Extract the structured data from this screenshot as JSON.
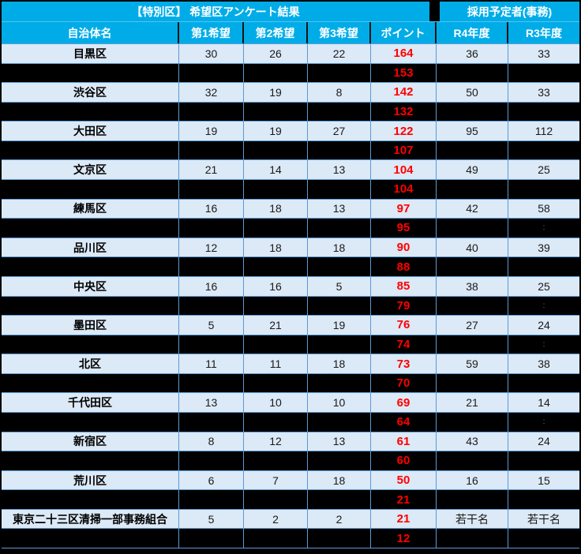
{
  "title": {
    "left": "【特別区】 希望区アンケート結果",
    "right": "採用予定者(事務)"
  },
  "header": {
    "cols": [
      "自治体名",
      "第1希望",
      "第2希望",
      "第3希望",
      "ポイント",
      "R4年度",
      "R3年度"
    ]
  },
  "rows": [
    {
      "type": "data",
      "name": "目黒区",
      "c1": "30",
      "c2": "26",
      "c3": "22",
      "point": "164",
      "r4": "36",
      "r3": "33"
    },
    {
      "type": "hidden",
      "point": "153"
    },
    {
      "type": "data",
      "name": "渋谷区",
      "c1": "32",
      "c2": "19",
      "c3": "8",
      "point": "142",
      "r4": "50",
      "r3": "33"
    },
    {
      "type": "hidden",
      "point": "132"
    },
    {
      "type": "data",
      "name": "大田区",
      "c1": "19",
      "c2": "19",
      "c3": "27",
      "point": "122",
      "r4": "95",
      "r3": "112"
    },
    {
      "type": "hidden",
      "point": "107"
    },
    {
      "type": "data",
      "name": "文京区",
      "c1": "21",
      "c2": "14",
      "c3": "13",
      "point": "104",
      "r4": "49",
      "r3": "25"
    },
    {
      "type": "hidden",
      "point": "104"
    },
    {
      "type": "data",
      "name": "練馬区",
      "c1": "16",
      "c2": "18",
      "c3": "13",
      "point": "97",
      "r4": "42",
      "r3": "58"
    },
    {
      "type": "hidden",
      "point": "95",
      "faint_mark": ":"
    },
    {
      "type": "data",
      "name": "品川区",
      "c1": "12",
      "c2": "18",
      "c3": "18",
      "point": "90",
      "r4": "40",
      "r3": "39"
    },
    {
      "type": "hidden",
      "point": "88"
    },
    {
      "type": "data",
      "name": "中央区",
      "c1": "16",
      "c2": "16",
      "c3": "5",
      "point": "85",
      "r4": "38",
      "r3": "25"
    },
    {
      "type": "hidden",
      "point": "79",
      "faint_mark": ":"
    },
    {
      "type": "data",
      "name": "墨田区",
      "c1": "5",
      "c2": "21",
      "c3": "19",
      "point": "76",
      "r4": "27",
      "r3": "24"
    },
    {
      "type": "hidden",
      "point": "74",
      "faint_mark": ":"
    },
    {
      "type": "data",
      "name": "北区",
      "c1": "11",
      "c2": "11",
      "c3": "18",
      "point": "73",
      "r4": "59",
      "r3": "38"
    },
    {
      "type": "hidden",
      "point": "70"
    },
    {
      "type": "data",
      "name": "千代田区",
      "c1": "13",
      "c2": "10",
      "c3": "10",
      "point": "69",
      "r4": "21",
      "r3": "14"
    },
    {
      "type": "hidden",
      "point": "64",
      "faint_mark": ":"
    },
    {
      "type": "data",
      "name": "新宿区",
      "c1": "8",
      "c2": "12",
      "c3": "13",
      "point": "61",
      "r4": "43",
      "r3": "24"
    },
    {
      "type": "hidden",
      "point": "60"
    },
    {
      "type": "data",
      "name": "荒川区",
      "c1": "6",
      "c2": "7",
      "c3": "18",
      "point": "50",
      "r4": "16",
      "r3": "15"
    },
    {
      "type": "hidden",
      "point": "21"
    },
    {
      "type": "data",
      "name": "東京二十三区清掃一部事務組合",
      "c1": "5",
      "c2": "2",
      "c3": "2",
      "point": "21",
      "r4": "若干名",
      "r3": "若干名"
    },
    {
      "type": "hidden",
      "point": "12"
    }
  ],
  "colors": {
    "header_blue": "#00ACE8",
    "grid_blue": "#5B9BD5",
    "row_light_blue": "#DCE9F6",
    "hidden_row_black": "#000000",
    "point_red": "#FF0000"
  },
  "chart_data": {
    "type": "table",
    "title": "【特別区】 希望区アンケート結果 / 採用予定者(事務)",
    "columns": [
      "自治体名",
      "第1希望",
      "第2希望",
      "第3希望",
      "ポイント",
      "R4年度",
      "R3年度"
    ],
    "rows": [
      [
        "目黒区",
        30,
        26,
        22,
        164,
        "36",
        "33"
      ],
      [
        "(非表示)",
        null,
        null,
        null,
        153,
        null,
        null
      ],
      [
        "渋谷区",
        32,
        19,
        8,
        142,
        "50",
        "33"
      ],
      [
        "(非表示)",
        null,
        null,
        null,
        132,
        null,
        null
      ],
      [
        "大田区",
        19,
        19,
        27,
        122,
        "95",
        "112"
      ],
      [
        "(非表示)",
        null,
        null,
        null,
        107,
        null,
        null
      ],
      [
        "文京区",
        21,
        14,
        13,
        104,
        "49",
        "25"
      ],
      [
        "(非表示)",
        null,
        null,
        null,
        104,
        null,
        null
      ],
      [
        "練馬区",
        16,
        18,
        13,
        97,
        "42",
        "58"
      ],
      [
        "(非表示)",
        null,
        null,
        null,
        95,
        null,
        null
      ],
      [
        "品川区",
        12,
        18,
        18,
        90,
        "40",
        "39"
      ],
      [
        "(非表示)",
        null,
        null,
        null,
        88,
        null,
        null
      ],
      [
        "中央区",
        16,
        16,
        5,
        85,
        "38",
        "25"
      ],
      [
        "(非表示)",
        null,
        null,
        null,
        79,
        null,
        null
      ],
      [
        "墨田区",
        5,
        21,
        19,
        76,
        "27",
        "24"
      ],
      [
        "(非表示)",
        null,
        null,
        null,
        74,
        null,
        null
      ],
      [
        "北区",
        11,
        11,
        18,
        73,
        "59",
        "38"
      ],
      [
        "(非表示)",
        null,
        null,
        null,
        70,
        null,
        null
      ],
      [
        "千代田区",
        13,
        10,
        10,
        69,
        "21",
        "14"
      ],
      [
        "(非表示)",
        null,
        null,
        null,
        64,
        null,
        null
      ],
      [
        "新宿区",
        8,
        12,
        13,
        61,
        "43",
        "24"
      ],
      [
        "(非表示)",
        null,
        null,
        null,
        60,
        null,
        null
      ],
      [
        "荒川区",
        6,
        7,
        18,
        50,
        "16",
        "15"
      ],
      [
        "(非表示)",
        null,
        null,
        null,
        21,
        null,
        null
      ],
      [
        "東京二十三区清掃一部事務組合",
        5,
        2,
        2,
        21,
        "若干名",
        "若干名"
      ],
      [
        "(非表示)",
        null,
        null,
        null,
        12,
        null,
        null
      ]
    ],
    "layout": "alternating visible light-blue rows and blacked-out rows; points column always visible in red"
  }
}
